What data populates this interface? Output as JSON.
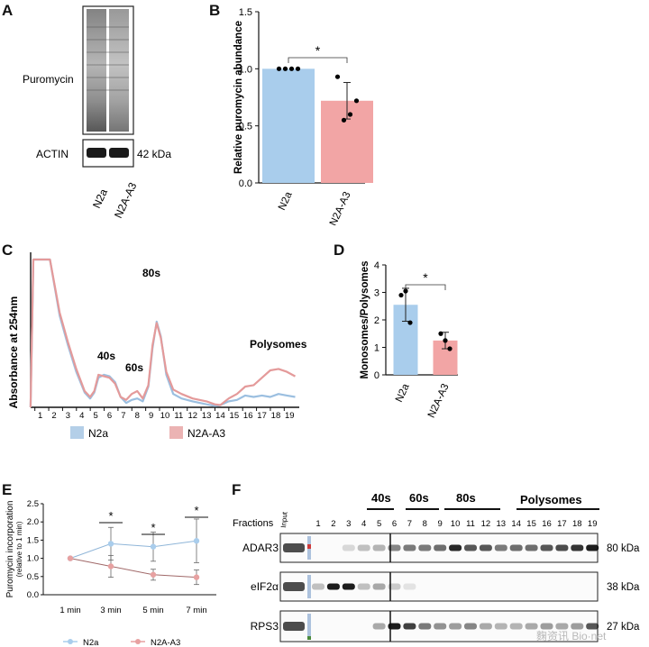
{
  "panels": {
    "A": {
      "letter": "A",
      "puromycin_label": "Puromycin",
      "actin_label": "ACTIN",
      "kda_label": "42 kDa",
      "lanes": [
        "N2a",
        "N2A-A3"
      ]
    },
    "B": {
      "letter": "B",
      "significance": "*"
    },
    "C": {
      "letter": "C",
      "peak_40s": "40s",
      "peak_60s": "60s",
      "peak_80s": "80s",
      "peak_poly": "Polysomes"
    },
    "D": {
      "letter": "D",
      "significance": "*"
    },
    "E": {
      "letter": "E",
      "stars": [
        "*",
        "*",
        "*"
      ]
    },
    "F": {
      "letter": "F",
      "fractions_label": "Fractions",
      "input_label": "Input",
      "group_labels": [
        "40s",
        "60s",
        "80s",
        "Polysomes"
      ],
      "fraction_numbers": [
        "1",
        "2",
        "3",
        "4",
        "5",
        "6",
        "7",
        "8",
        "9",
        "10",
        "11",
        "12",
        "13",
        "14",
        "15",
        "16",
        "17",
        "18",
        "19"
      ],
      "rows": [
        {
          "name": "ADAR3",
          "kda": "80 kDa"
        },
        {
          "name": "eIF2α",
          "kda": "38 kDa"
        },
        {
          "name": "RPS3",
          "kda": "27 kDa"
        }
      ],
      "watermark": "麴资讯 Bio·net"
    }
  },
  "chart_data": [
    {
      "id": "B",
      "type": "bar",
      "categories": [
        "N2a",
        "N2A-A3"
      ],
      "values": [
        1.0,
        0.72
      ],
      "errors": [
        0.0,
        0.16
      ],
      "points": [
        [
          1.0,
          1.0,
          1.0,
          1.0
        ],
        [
          0.93,
          0.55,
          0.6,
          0.72
        ]
      ],
      "colors": [
        "#a9cdec",
        "#f2a5a5"
      ],
      "ylabel": "Relative puromycin abundance",
      "ylim": [
        0,
        1.5
      ],
      "yticks": [
        "0.0",
        "0.5",
        "1.0",
        "1.5"
      ],
      "significance": "*"
    },
    {
      "id": "C",
      "type": "line",
      "ylabel": "Absorbance at 254nm",
      "x_ticks": [
        "1",
        "2",
        "3",
        "4",
        "5",
        "6",
        "7",
        "8",
        "9",
        "10",
        "11",
        "12",
        "13",
        "14",
        "15",
        "16",
        "17",
        "18",
        "19"
      ],
      "series": [
        {
          "name": "N2a",
          "color": "#9bbfe0",
          "x": [
            0.3,
            0.5,
            1,
            1.7,
            2.4,
            3.0,
            3.6,
            4.2,
            4.6,
            4.9,
            5.2,
            5.6,
            6.0,
            6.4,
            6.8,
            7.2,
            7.6,
            8.0,
            8.4,
            8.8,
            9.1,
            9.4,
            9.7,
            10.1,
            10.6,
            11.2,
            12,
            13,
            13.6,
            14,
            14.6,
            15.2,
            15.8,
            16.4,
            17,
            17.6,
            18.2,
            18.8,
            19.4
          ],
          "y": [
            0,
            1.0,
            1.0,
            1.0,
            0.62,
            0.42,
            0.24,
            0.1,
            0.06,
            0.1,
            0.2,
            0.22,
            0.21,
            0.17,
            0.07,
            0.03,
            0.05,
            0.06,
            0.04,
            0.14,
            0.4,
            0.58,
            0.48,
            0.22,
            0.09,
            0.06,
            0.04,
            0.02,
            0.01,
            0.015,
            0.04,
            0.05,
            0.08,
            0.07,
            0.08,
            0.07,
            0.09,
            0.08,
            0.07
          ]
        },
        {
          "name": "N2A-A3",
          "color": "#e49a9a",
          "x": [
            0.3,
            0.5,
            1,
            1.7,
            2.4,
            3.0,
            3.6,
            4.2,
            4.6,
            4.9,
            5.2,
            5.6,
            6.0,
            6.4,
            6.8,
            7.2,
            7.6,
            8.0,
            8.4,
            8.8,
            9.1,
            9.4,
            9.7,
            10.1,
            10.6,
            11.2,
            12,
            13,
            13.6,
            14,
            14.6,
            15.2,
            15.8,
            16.4,
            17,
            17.6,
            18.2,
            18.8,
            19.4
          ],
          "y": [
            0,
            1.0,
            1.0,
            1.0,
            0.64,
            0.44,
            0.26,
            0.11,
            0.07,
            0.11,
            0.22,
            0.21,
            0.2,
            0.16,
            0.07,
            0.05,
            0.09,
            0.11,
            0.06,
            0.15,
            0.42,
            0.57,
            0.47,
            0.24,
            0.12,
            0.09,
            0.06,
            0.04,
            0.02,
            0.015,
            0.06,
            0.09,
            0.14,
            0.15,
            0.2,
            0.25,
            0.26,
            0.24,
            0.21
          ]
        }
      ]
    },
    {
      "id": "D",
      "type": "bar",
      "categories": [
        "N2a",
        "N2A-A3"
      ],
      "values": [
        2.55,
        1.25
      ],
      "errors": [
        0.6,
        0.3
      ],
      "points": [
        [
          2.9,
          3.05,
          1.9
        ],
        [
          1.5,
          1.25,
          0.95
        ]
      ],
      "colors": [
        "#a9cdec",
        "#f2a5a5"
      ],
      "ylabel": "Monosomes/Polysomes",
      "ylim": [
        0,
        4
      ],
      "yticks": [
        "0",
        "1",
        "2",
        "3",
        "4"
      ],
      "significance": "*"
    },
    {
      "id": "E",
      "type": "line",
      "categories": [
        "1 min",
        "3 min",
        "5 min",
        "7 min"
      ],
      "ylabel": "Puromycin incorporation",
      "ylabel2": "(relative to 1 min)",
      "ylim": [
        0,
        2.5
      ],
      "yticks": [
        "0.0",
        "0.5",
        "1.0",
        "1.5",
        "2.0",
        "2.5"
      ],
      "series": [
        {
          "name": "N2a",
          "color": "#a9cdec",
          "values": [
            1.0,
            1.4,
            1.32,
            1.48
          ],
          "errors": [
            0,
            0.45,
            0.4,
            0.6
          ]
        },
        {
          "name": "N2A-A3",
          "color": "#e7a1a1",
          "values": [
            1.0,
            0.78,
            0.55,
            0.48
          ],
          "errors": [
            0,
            0.3,
            0.15,
            0.2
          ]
        }
      ],
      "legend": "bottom"
    }
  ]
}
